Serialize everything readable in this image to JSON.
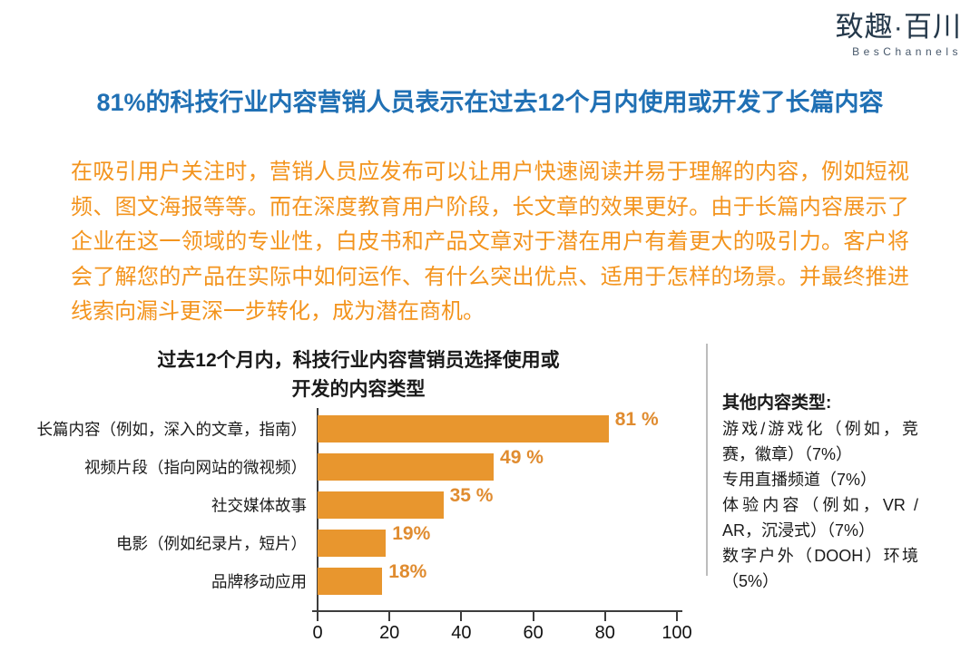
{
  "logo": {
    "brand": "致趣·百川",
    "subbrand": "BesChannels",
    "color": "#24384a"
  },
  "title": {
    "text": "81%的科技行业内容营销人员表示在过去12个月内使用或开发了长篇内容",
    "color": "#2070b4"
  },
  "intro": {
    "text": "在吸引用户关注时，营销人员应发布可以让用户快速阅读并易于理解的内容，例如短视频、图文海报等等。而在深度教育用户阶段，长文章的效果更好。由于长篇内容展示了企业在这一领域的专业性，白皮书和产品文章对于潜在用户有着更大的吸引力。客户将会了解您的产品在实际中如何运作、有什么突出优点、适用于怎样的场景。并最终推进线索向漏斗更深一步转化，成为潜在商机。",
    "color": "#f3941e"
  },
  "chart_data": {
    "type": "bar",
    "orientation": "horizontal",
    "title": "过去12个月内，科技行业内容营销员选择使用或开发的内容类型",
    "title_lines": [
      "过去12个月内，科技行业内容营销员选择使用或",
      "开发的内容类型"
    ],
    "categories": [
      "长篇内容（例如，深入的文章，指南）",
      "视频片段（指向网站的微视频）",
      "社交媒体故事",
      "电影（例如纪录片，短片）",
      "品牌移动应用"
    ],
    "values": [
      81,
      49,
      35,
      19,
      18
    ],
    "value_labels": [
      "81 %",
      "49 %",
      "35 %",
      "19%",
      "18%"
    ],
    "x_ticks": [
      0,
      20,
      40,
      60,
      80,
      100
    ],
    "xlim": [
      0,
      100
    ],
    "grid": false,
    "legend": false,
    "bar_color": "#e8962e",
    "value_label_color": "#e08c30",
    "axis_color": "#3d3d3d"
  },
  "aside": {
    "heading": "其他内容类型:",
    "items": [
      "游戏/游戏化（例如，竞赛，徽章）（7%）",
      "专用直播频道（7%）",
      "体验内容（例如，VR / AR，沉浸式）（7%）",
      "数字户外（DOOH）环境（5%）"
    ]
  }
}
